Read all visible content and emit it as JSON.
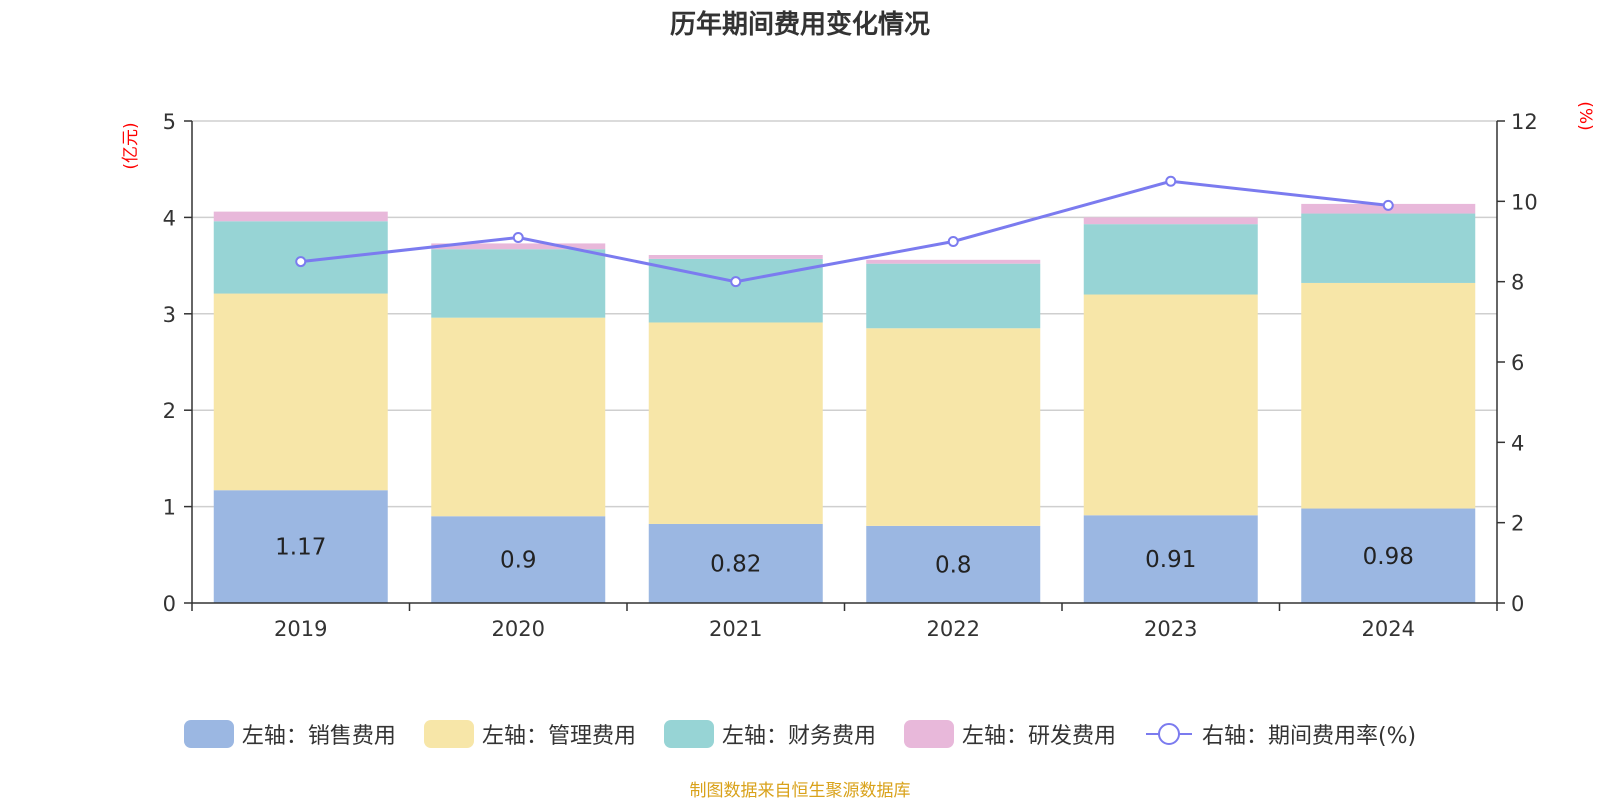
{
  "chart_data": {
    "type": "bar",
    "stacked": true,
    "title": "历年期间费用变化情况",
    "categories": [
      "2019",
      "2020",
      "2021",
      "2022",
      "2023",
      "2024"
    ],
    "left_axis": {
      "unit": "(亿元)",
      "ylim": [
        0,
        5
      ],
      "ticks": [
        0,
        1,
        2,
        3,
        4,
        5
      ]
    },
    "right_axis": {
      "unit": "(%)",
      "ylim": [
        0,
        12
      ],
      "ticks": [
        0,
        2,
        4,
        6,
        8,
        10,
        12
      ]
    },
    "series": [
      {
        "name": "左轴：销售费用",
        "axis": "left",
        "type": "bar",
        "color": "#9bb7e2",
        "values": [
          1.17,
          0.9,
          0.82,
          0.8,
          0.91,
          0.98
        ],
        "labels_shown": true
      },
      {
        "name": "左轴：管理费用",
        "axis": "left",
        "type": "bar",
        "color": "#f7e6a8",
        "values": [
          2.04,
          2.06,
          2.09,
          2.05,
          2.29,
          2.34
        ]
      },
      {
        "name": "左轴：财务费用",
        "axis": "left",
        "type": "bar",
        "color": "#97d4d5",
        "values": [
          0.75,
          0.71,
          0.66,
          0.67,
          0.73,
          0.72
        ]
      },
      {
        "name": "左轴：研发费用",
        "axis": "left",
        "type": "bar",
        "color": "#e8b8da",
        "values": [
          0.1,
          0.06,
          0.04,
          0.04,
          0.07,
          0.1
        ]
      },
      {
        "name": "右轴：期间费用率(%)",
        "axis": "right",
        "type": "line",
        "color": "#7b7bef",
        "values": [
          8.5,
          9.1,
          8.0,
          9.0,
          10.5,
          9.9
        ]
      }
    ],
    "grid": true,
    "legend_position": "bottom"
  },
  "footer": {
    "source": "制图数据来自恒生聚源数据库"
  }
}
